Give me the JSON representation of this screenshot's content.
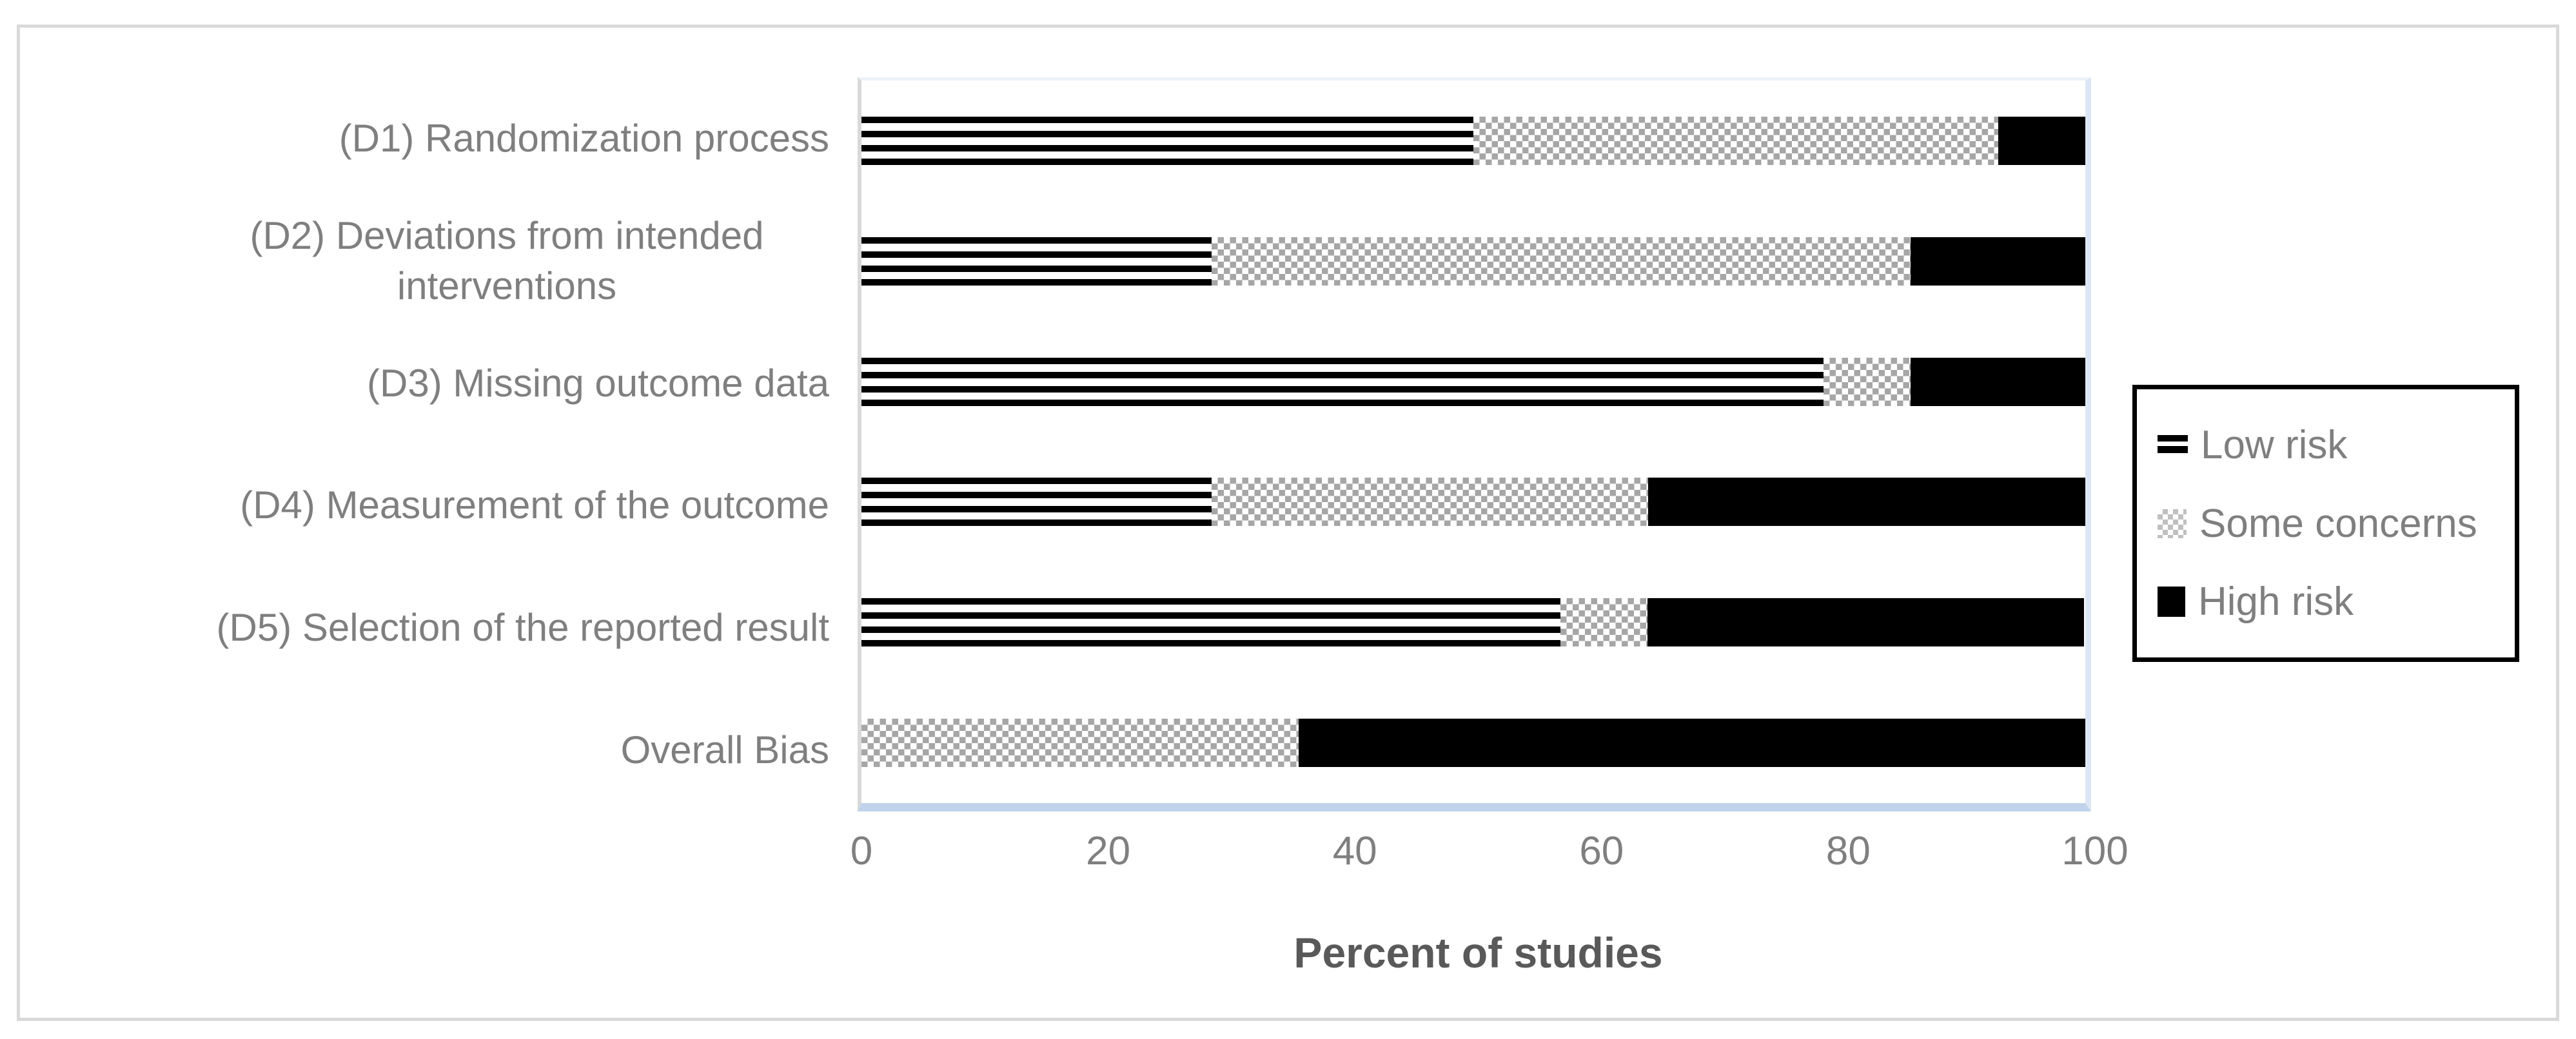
{
  "figure": {
    "background": "#ffffff",
    "border_color": "#d9d9d9"
  },
  "chart_data": {
    "type": "bar",
    "orientation": "horizontal",
    "stacked": true,
    "title": "",
    "xlabel": "Percent of studies",
    "ylabel": "",
    "xlim": [
      0,
      100
    ],
    "x_ticks": [
      0,
      20,
      40,
      60,
      80,
      100
    ],
    "grid": false,
    "legend_position": "right",
    "categories": [
      "(D1) Randomization process",
      "(D2) Deviations from intended interventions",
      "(D3) Missing outcome data",
      "(D4) Measurement of the outcome",
      "(D5) Selection of the reported result",
      "Overall Bias"
    ],
    "series": [
      {
        "name": "Low risk",
        "pattern": "stripes",
        "values": [
          50.0,
          28.6,
          78.6,
          28.6,
          57.1,
          0.0
        ]
      },
      {
        "name": "Some concerns",
        "pattern": "checker",
        "values": [
          42.9,
          57.1,
          7.1,
          35.7,
          7.1,
          35.7
        ]
      },
      {
        "name": "High risk",
        "pattern": "solid",
        "values": [
          7.1,
          14.3,
          14.3,
          35.7,
          35.7,
          64.3
        ]
      }
    ]
  },
  "colors": {
    "bar_black": "#000000",
    "checker_gray": "#a6a6a6",
    "legend_checker_gray": "#c0c0c0",
    "category_label_gray": "#7f7f7f",
    "tick_label_gray": "#7f7f7f",
    "axis_title_gray": "#595959",
    "axis_line_blue": "#c1d3eb",
    "plot_border_right_blue": "#dde7f4",
    "plot_border_top_blue": "#eef2f9",
    "plot_axis_left_gray": "#d9d9d9",
    "figure_border_gray": "#d9d9d9",
    "legend_border_black": "#000000"
  }
}
